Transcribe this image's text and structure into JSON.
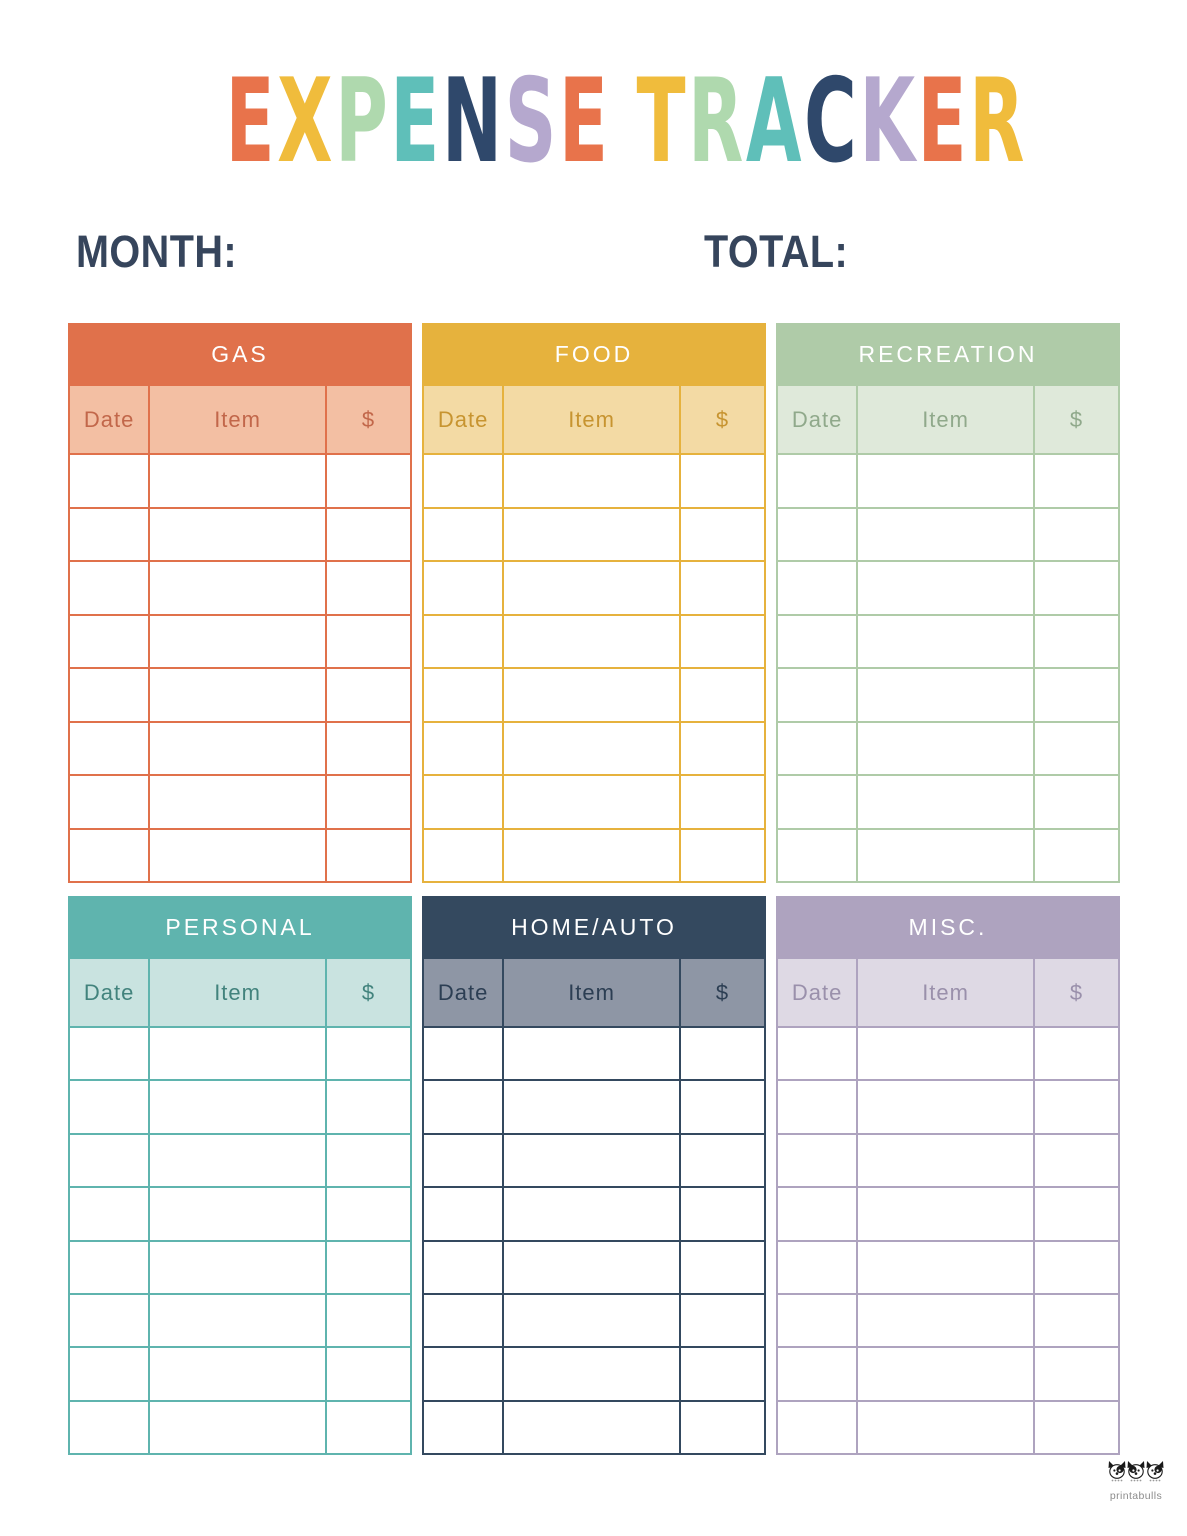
{
  "page_title": {
    "text": "EXPENSE TRACKER",
    "letters": [
      {
        "ch": "E",
        "color": "#E8734B"
      },
      {
        "ch": "X",
        "color": "#F0BC3C"
      },
      {
        "ch": "P",
        "color": "#AFD9AE"
      },
      {
        "ch": "E",
        "color": "#5FBFB9"
      },
      {
        "ch": "N",
        "color": "#2F486B"
      },
      {
        "ch": "S",
        "color": "#B5A8CE"
      },
      {
        "ch": "E",
        "color": "#E8734B"
      },
      {
        "ch": " ",
        "color": ""
      },
      {
        "ch": "T",
        "color": "#F0BC3C"
      },
      {
        "ch": "R",
        "color": "#AFD9AE"
      },
      {
        "ch": "A",
        "color": "#5FBFB9"
      },
      {
        "ch": "C",
        "color": "#2F486B"
      },
      {
        "ch": "K",
        "color": "#B5A8CE"
      },
      {
        "ch": "E",
        "color": "#E8734B"
      },
      {
        "ch": "R",
        "color": "#F0BC3C"
      }
    ]
  },
  "labels": {
    "month": "MONTH:",
    "total": "TOTAL:",
    "label_color": "#36455C"
  },
  "table_columns": [
    "Date",
    "Item",
    "$"
  ],
  "tables": [
    {
      "title": "GAS",
      "rows": 8,
      "colors": {
        "main": "#E0714B",
        "light": "#F3BFA3",
        "text": "#C2674A"
      }
    },
    {
      "title": "FOOD",
      "rows": 8,
      "colors": {
        "main": "#E6B23D",
        "light": "#F3DAA4",
        "text": "#C79430"
      }
    },
    {
      "title": "RECREATION",
      "rows": 8,
      "colors": {
        "main": "#AFCBA8",
        "light": "#DFE9DA",
        "text": "#90A98B"
      }
    },
    {
      "title": "PERSONAL",
      "rows": 8,
      "colors": {
        "main": "#5FB4AE",
        "light": "#C9E3E0",
        "text": "#42837D"
      }
    },
    {
      "title": "HOME/AUTO",
      "rows": 8,
      "colors": {
        "main": "#34495F",
        "light": "#8E96A5",
        "text": "#2C3E53"
      }
    },
    {
      "title": "MISC.",
      "rows": 8,
      "colors": {
        "main": "#AEA3BF",
        "light": "#DED9E4",
        "text": "#9A90AB"
      }
    }
  ],
  "footer": {
    "brand": "printabulls"
  }
}
